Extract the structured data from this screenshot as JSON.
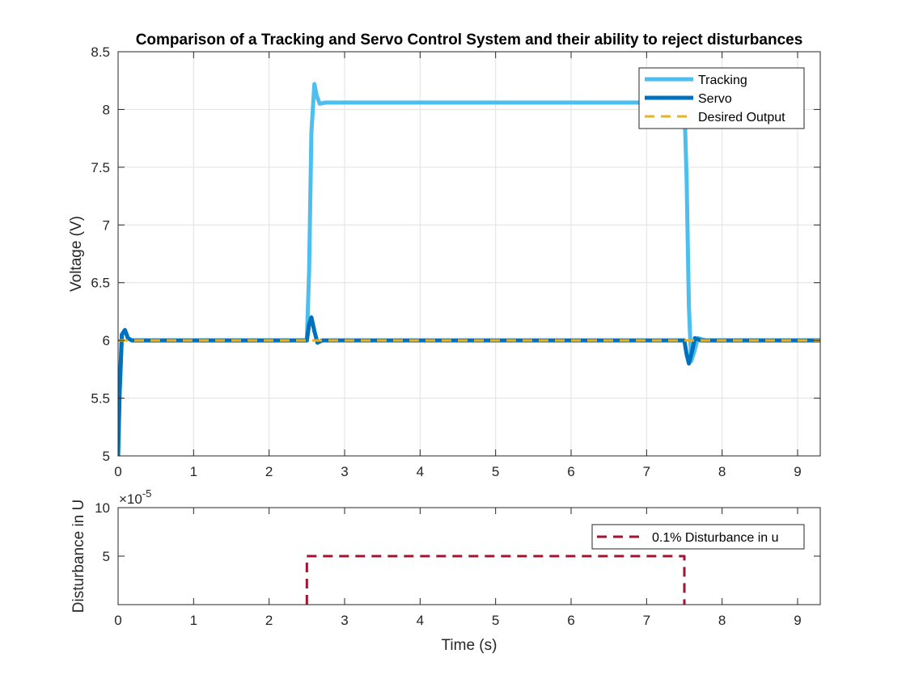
{
  "chart_data": [
    {
      "type": "line",
      "title": "Comparison of a Tracking and Servo Control System and their ability to reject disturbances",
      "xlabel": "",
      "ylabel": "Voltage (V)",
      "xlim": [
        0,
        9.3
      ],
      "ylim": [
        5,
        8.5
      ],
      "xticks": [
        "0",
        "1",
        "2",
        "3",
        "4",
        "5",
        "6",
        "7",
        "8",
        "9"
      ],
      "yticks": [
        "5",
        "5.5",
        "6",
        "6.5",
        "7",
        "7.5",
        "8",
        "8.5"
      ],
      "grid": true,
      "legend_position": "top-right",
      "series": [
        {
          "name": "Tracking",
          "color": "#4DBEEE",
          "style": "solid",
          "points": [
            [
              0,
              5
            ],
            [
              0.02,
              5.55
            ],
            [
              0.05,
              6.05
            ],
            [
              0.09,
              6.09
            ],
            [
              0.13,
              6.02
            ],
            [
              0.18,
              6
            ],
            [
              2.5,
              6
            ],
            [
              2.53,
              6.6
            ],
            [
              2.56,
              7.8
            ],
            [
              2.6,
              8.22
            ],
            [
              2.63,
              8.12
            ],
            [
              2.67,
              8.05
            ],
            [
              2.75,
              8.06
            ],
            [
              7.5,
              8.06
            ],
            [
              7.53,
              7.4
            ],
            [
              7.56,
              6.3
            ],
            [
              7.59,
              5.82
            ],
            [
              7.63,
              5.9
            ],
            [
              7.68,
              6.02
            ],
            [
              7.78,
              6
            ],
            [
              9.3,
              6
            ]
          ]
        },
        {
          "name": "Servo",
          "color": "#0072BD",
          "style": "solid",
          "points": [
            [
              0,
              5
            ],
            [
              0.02,
              5.55
            ],
            [
              0.05,
              6.05
            ],
            [
              0.09,
              6.09
            ],
            [
              0.13,
              6.02
            ],
            [
              0.18,
              6
            ],
            [
              2.5,
              6
            ],
            [
              2.53,
              6.14
            ],
            [
              2.56,
              6.2
            ],
            [
              2.6,
              6.08
            ],
            [
              2.64,
              5.98
            ],
            [
              2.7,
              6
            ],
            [
              7.5,
              6
            ],
            [
              7.53,
              5.88
            ],
            [
              7.56,
              5.8
            ],
            [
              7.6,
              5.9
            ],
            [
              7.64,
              6.02
            ],
            [
              7.72,
              6
            ],
            [
              9.3,
              6
            ]
          ]
        },
        {
          "name": "Desired Output",
          "color": "#EDB120",
          "style": "dashed",
          "points": [
            [
              0,
              6
            ],
            [
              9.3,
              6
            ]
          ]
        }
      ]
    },
    {
      "type": "line",
      "title": "",
      "xlabel": "Time (s)",
      "ylabel": "Disturbance in U",
      "exponent_label": "×10",
      "exponent_power": "-5",
      "xlim": [
        0,
        9.3
      ],
      "ylim": [
        0,
        10
      ],
      "xticks": [
        "0",
        "1",
        "2",
        "3",
        "4",
        "5",
        "6",
        "7",
        "8",
        "9"
      ],
      "yticks": [
        "5",
        "10"
      ],
      "grid": false,
      "legend_position": "top-right",
      "series": [
        {
          "name": "0.1% Disturbance in u",
          "color": "#A2142F",
          "style": "dashed",
          "points": [
            [
              2.5,
              0
            ],
            [
              2.5,
              5
            ],
            [
              7.5,
              5
            ],
            [
              7.5,
              0
            ]
          ]
        }
      ]
    }
  ]
}
